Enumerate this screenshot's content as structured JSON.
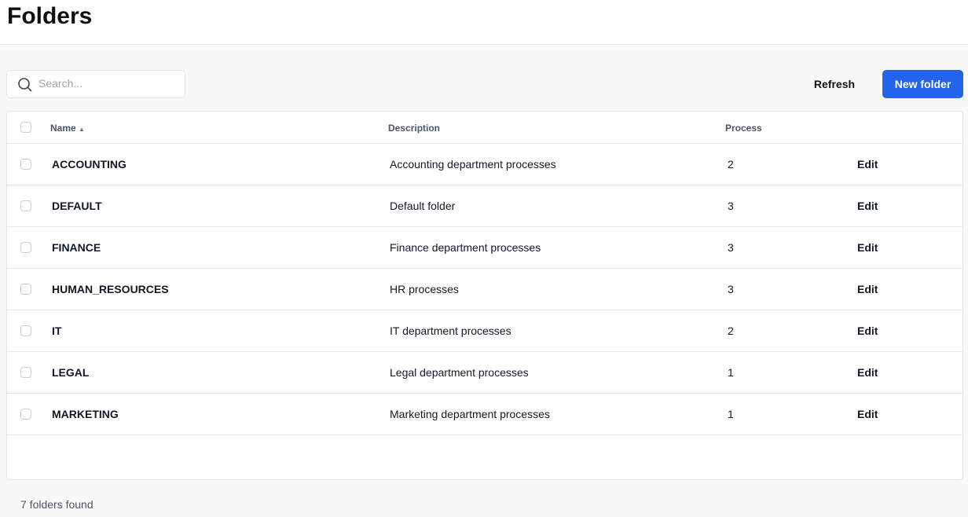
{
  "page": {
    "title": "Folders"
  },
  "toolbar": {
    "search_placeholder": "Search...",
    "refresh_label": "Refresh",
    "new_folder_label": "New folder",
    "accent": "#2563eb"
  },
  "table": {
    "columns": {
      "name": "Name",
      "name_sort": "▲",
      "description": "Description",
      "process": "Process"
    },
    "rows": [
      {
        "name": "ACCOUNTING",
        "description": "Accounting department processes",
        "process": "2",
        "action": "Edit"
      },
      {
        "name": "DEFAULT",
        "description": "Default folder",
        "process": "3",
        "action": "Edit"
      },
      {
        "name": "FINANCE",
        "description": "Finance department processes",
        "process": "3",
        "action": "Edit"
      },
      {
        "name": "HUMAN_RESOURCES",
        "description": "HR processes",
        "process": "3",
        "action": "Edit"
      },
      {
        "name": "IT",
        "description": "IT department processes",
        "process": "2",
        "action": "Edit"
      },
      {
        "name": "LEGAL",
        "description": "Legal department processes",
        "process": "1",
        "action": "Edit"
      },
      {
        "name": "MARKETING",
        "description": "Marketing department processes",
        "process": "1",
        "action": "Edit"
      }
    ]
  },
  "footer": {
    "count_text": "7 folders found"
  }
}
